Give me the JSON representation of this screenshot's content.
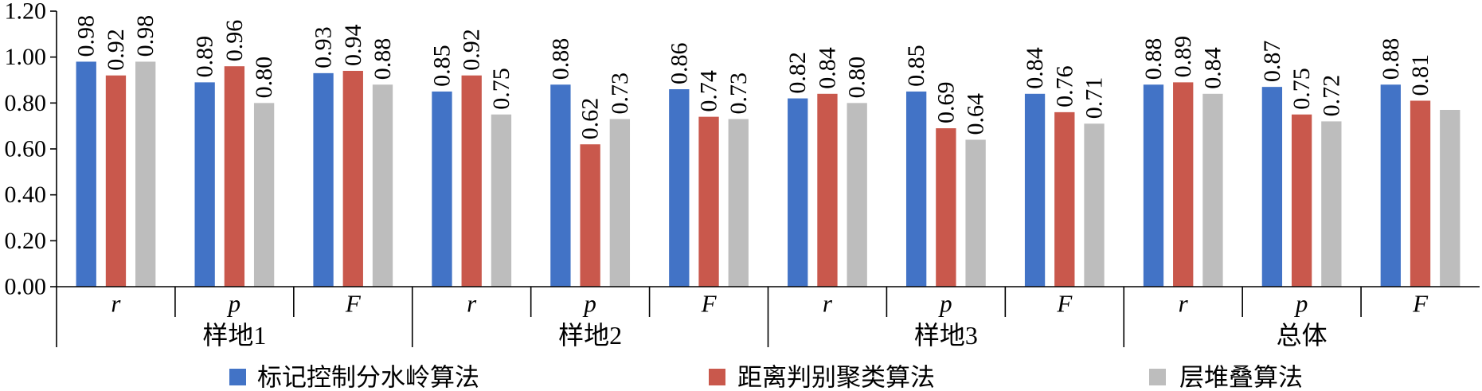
{
  "chart_data": {
    "type": "bar",
    "ylim": [
      0,
      1.2
    ],
    "yticks": [
      "0.00",
      "0.20",
      "0.40",
      "0.60",
      "0.80",
      "1.00",
      "1.20"
    ],
    "grid": false,
    "legend_position": "bottom",
    "groups": [
      {
        "name": "样地1",
        "categories": [
          "r",
          "p",
          "F"
        ]
      },
      {
        "name": "样地2",
        "categories": [
          "r",
          "p",
          "F"
        ]
      },
      {
        "name": "样地3",
        "categories": [
          "r",
          "p",
          "F"
        ]
      },
      {
        "name": "总体",
        "categories": [
          "r",
          "p",
          "F"
        ]
      }
    ],
    "series": [
      {
        "name": "标记控制分水岭算法",
        "color": "#4273c6",
        "values": [
          0.98,
          0.89,
          0.93,
          0.85,
          0.88,
          0.86,
          0.82,
          0.85,
          0.84,
          0.88,
          0.87,
          0.88
        ],
        "data_labels": [
          "0.98",
          "0.89",
          "0.93",
          "0.85",
          "0.88",
          "0.86",
          "0.82",
          "0.85",
          "0.84",
          "0.88",
          "0.87",
          "0.88"
        ]
      },
      {
        "name": "距离判别聚类算法",
        "color": "#c9584c",
        "values": [
          0.92,
          0.96,
          0.94,
          0.92,
          0.62,
          0.74,
          0.84,
          0.69,
          0.76,
          0.89,
          0.75,
          0.81
        ],
        "data_labels": [
          "0.92",
          "0.96",
          "0.94",
          "0.92",
          "0.62",
          "0.74",
          "0.84",
          "0.69",
          "0.76",
          "0.89",
          "0.75",
          "0.81"
        ]
      },
      {
        "name": "层堆叠算法",
        "color": "#bdbdbd",
        "values": [
          0.98,
          0.8,
          0.88,
          0.75,
          0.73,
          0.73,
          0.8,
          0.64,
          0.71,
          0.84,
          0.72,
          0.77
        ],
        "data_labels": [
          "0.98",
          "0.80",
          "0.88",
          "0.75",
          "0.73",
          "0.73",
          "0.80",
          "0.64",
          "0.71",
          "0.84",
          "0.72",
          null
        ]
      }
    ]
  }
}
